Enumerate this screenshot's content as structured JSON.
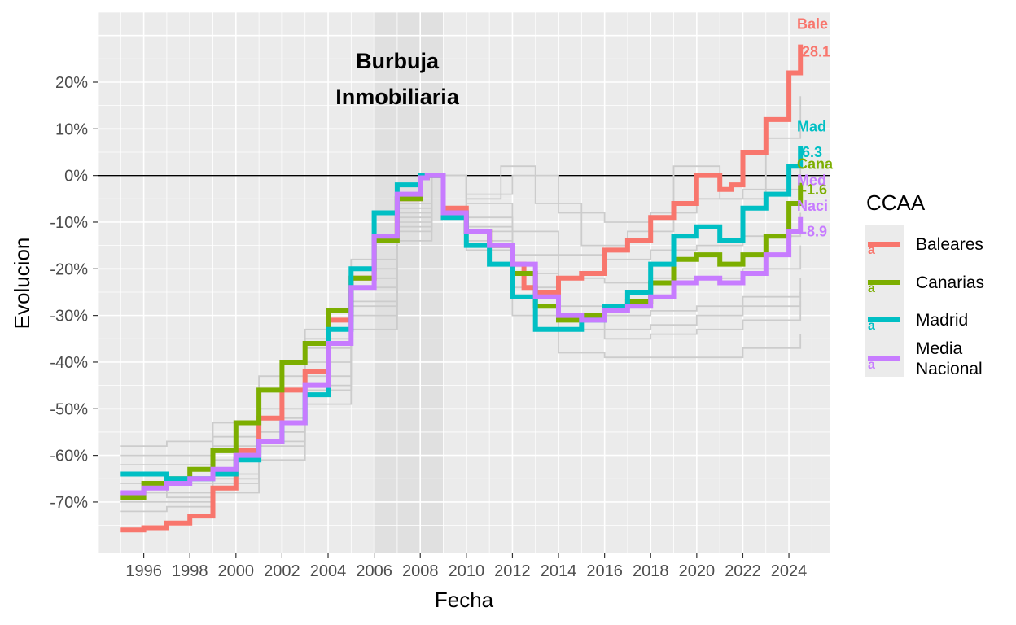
{
  "chart_data": {
    "type": "line",
    "title": "",
    "xlabel": "Fecha",
    "ylabel": "Evolucion",
    "xlim": [
      1994.0,
      2025.8
    ],
    "ylim": [
      -81,
      35
    ],
    "x_ticks": [
      1996,
      1998,
      2000,
      2002,
      2004,
      2006,
      2008,
      2010,
      2012,
      2014,
      2016,
      2018,
      2020,
      2022,
      2024
    ],
    "x_tick_labels": [
      "1996",
      "1998",
      "2000",
      "2002",
      "2004",
      "2006",
      "2008",
      "2010",
      "2012",
      "2014",
      "2016",
      "2018",
      "2020",
      "2022",
      "2024"
    ],
    "y_ticks": [
      -70,
      -60,
      -50,
      -40,
      -30,
      -20,
      -10,
      0,
      10,
      20
    ],
    "y_tick_labels": [
      "-70%",
      "-60%",
      "-50%",
      "-40%",
      "-30%",
      "-20%",
      "-10%",
      "0%",
      "10%",
      "20%"
    ],
    "grid": true,
    "reference_line_y": 0,
    "shaded_region": {
      "x": [
        2006.0,
        2009.0
      ],
      "label_line1": "Burbuja",
      "label_line2": "Inmobiliaria"
    },
    "legend": {
      "title": "CCAA",
      "placement": "right",
      "key_glyph": "a",
      "entries": [
        {
          "label_line1": "Baleares",
          "label_line2": "",
          "color": "#F8766D"
        },
        {
          "label_line1": "Canarias",
          "label_line2": "",
          "color": "#7CAE00"
        },
        {
          "label_line1": "Madrid",
          "label_line2": "",
          "color": "#00BFC4"
        },
        {
          "label_line1": "Media",
          "label_line2": "Nacional",
          "color": "#C77CFF"
        }
      ]
    },
    "end_labels": [
      {
        "name": "Bale",
        "value": "28.1",
        "color": "#F8766D",
        "name_y": 32.5,
        "value_y": 26.5
      },
      {
        "name": "Mad",
        "value": "6.3",
        "color": "#00BFC4",
        "name_y": 10.5,
        "value_y": 5.0
      },
      {
        "name": "Cana",
        "value": "-1.6",
        "color": "#7CAE00",
        "name_y": 2.5,
        "value_y": -3.0
      },
      {
        "name": "Med",
        "value": "",
        "color": "#C77CFF",
        "name_y": -1.0,
        "value_y": -1.0
      },
      {
        "name": "Naci",
        "value": "-8.9",
        "color": "#C77CFF",
        "name_y": -6.5,
        "value_y": -12.0
      }
    ],
    "series": [
      {
        "name": "Baleares",
        "color": "#F8766D",
        "highlight": true,
        "points": [
          [
            1995.0,
            -76
          ],
          [
            1996.0,
            -75.5
          ],
          [
            1997.0,
            -74.5
          ],
          [
            1998.0,
            -73
          ],
          [
            1999.0,
            -67
          ],
          [
            2000.0,
            -59
          ],
          [
            2001.0,
            -52
          ],
          [
            2002.0,
            -46
          ],
          [
            2003.0,
            -42
          ],
          [
            2004.0,
            -31
          ],
          [
            2005.0,
            -22
          ],
          [
            2006.0,
            -13
          ],
          [
            2007.0,
            -5
          ],
          [
            2008.0,
            -0.5
          ],
          [
            2008.3,
            0
          ],
          [
            2009.0,
            -7
          ],
          [
            2010.0,
            -12
          ],
          [
            2011.0,
            -15
          ],
          [
            2012.0,
            -19
          ],
          [
            2012.5,
            -24
          ],
          [
            2013.0,
            -25
          ],
          [
            2014.0,
            -22
          ],
          [
            2015.0,
            -21
          ],
          [
            2016.0,
            -16
          ],
          [
            2017.0,
            -14
          ],
          [
            2018.0,
            -9
          ],
          [
            2019.0,
            -6
          ],
          [
            2020.0,
            0
          ],
          [
            2021.0,
            -3
          ],
          [
            2021.5,
            -2
          ],
          [
            2022.0,
            5
          ],
          [
            2023.0,
            12
          ],
          [
            2024.0,
            22
          ],
          [
            2024.5,
            28.1
          ]
        ]
      },
      {
        "name": "Canarias",
        "color": "#7CAE00",
        "highlight": true,
        "points": [
          [
            1995.0,
            -69
          ],
          [
            1996.0,
            -66
          ],
          [
            1997.0,
            -65
          ],
          [
            1998.0,
            -63
          ],
          [
            1999.0,
            -59
          ],
          [
            2000.0,
            -53
          ],
          [
            2001.0,
            -46
          ],
          [
            2002.0,
            -40
          ],
          [
            2003.0,
            -36
          ],
          [
            2004.0,
            -29
          ],
          [
            2005.0,
            -22
          ],
          [
            2006.0,
            -14
          ],
          [
            2007.0,
            -5
          ],
          [
            2008.0,
            -0.5
          ],
          [
            2008.3,
            0
          ],
          [
            2009.0,
            -8
          ],
          [
            2010.0,
            -12
          ],
          [
            2011.0,
            -15
          ],
          [
            2012.0,
            -21
          ],
          [
            2013.0,
            -28
          ],
          [
            2014.0,
            -31
          ],
          [
            2015.0,
            -30
          ],
          [
            2016.0,
            -28
          ],
          [
            2017.0,
            -27
          ],
          [
            2018.0,
            -23
          ],
          [
            2019.0,
            -18
          ],
          [
            2020.0,
            -17
          ],
          [
            2021.0,
            -19
          ],
          [
            2022.0,
            -17
          ],
          [
            2023.0,
            -13
          ],
          [
            2024.0,
            -6
          ],
          [
            2024.5,
            -1.6
          ]
        ]
      },
      {
        "name": "Madrid",
        "color": "#00BFC4",
        "highlight": true,
        "points": [
          [
            1995.0,
            -64
          ],
          [
            1996.0,
            -64
          ],
          [
            1997.0,
            -65
          ],
          [
            1998.0,
            -65
          ],
          [
            1999.0,
            -64
          ],
          [
            2000.0,
            -61
          ],
          [
            2001.0,
            -57
          ],
          [
            2002.0,
            -53
          ],
          [
            2003.0,
            -47
          ],
          [
            2004.0,
            -33
          ],
          [
            2005.0,
            -20
          ],
          [
            2006.0,
            -8
          ],
          [
            2007.0,
            -2
          ],
          [
            2008.0,
            0
          ],
          [
            2008.3,
            0
          ],
          [
            2009.0,
            -9
          ],
          [
            2010.0,
            -15
          ],
          [
            2011.0,
            -19
          ],
          [
            2012.0,
            -26
          ],
          [
            2013.0,
            -33
          ],
          [
            2014.0,
            -33
          ],
          [
            2015.0,
            -31
          ],
          [
            2016.0,
            -28
          ],
          [
            2017.0,
            -25
          ],
          [
            2018.0,
            -19
          ],
          [
            2019.0,
            -13
          ],
          [
            2020.0,
            -11
          ],
          [
            2021.0,
            -14
          ],
          [
            2022.0,
            -7
          ],
          [
            2023.0,
            -4
          ],
          [
            2024.0,
            2
          ],
          [
            2024.5,
            6.3
          ]
        ]
      },
      {
        "name": "Media Nacional",
        "color": "#C77CFF",
        "highlight": true,
        "points": [
          [
            1995.0,
            -68
          ],
          [
            1996.0,
            -67
          ],
          [
            1997.0,
            -66
          ],
          [
            1998.0,
            -65
          ],
          [
            1999.0,
            -63
          ],
          [
            2000.0,
            -60
          ],
          [
            2001.0,
            -57
          ],
          [
            2002.0,
            -53
          ],
          [
            2003.0,
            -45
          ],
          [
            2004.0,
            -36
          ],
          [
            2005.0,
            -24
          ],
          [
            2006.0,
            -13
          ],
          [
            2007.0,
            -4
          ],
          [
            2008.0,
            -0.5
          ],
          [
            2008.3,
            0
          ],
          [
            2009.0,
            -8
          ],
          [
            2010.0,
            -12
          ],
          [
            2011.0,
            -15
          ],
          [
            2012.0,
            -19
          ],
          [
            2013.0,
            -26
          ],
          [
            2014.0,
            -30
          ],
          [
            2015.0,
            -31
          ],
          [
            2016.0,
            -29
          ],
          [
            2017.0,
            -28
          ],
          [
            2018.0,
            -26
          ],
          [
            2019.0,
            -23
          ],
          [
            2020.0,
            -22
          ],
          [
            2021.0,
            -23
          ],
          [
            2022.0,
            -21
          ],
          [
            2023.0,
            -17
          ],
          [
            2024.0,
            -12
          ],
          [
            2024.5,
            -8.9
          ]
        ]
      },
      {
        "name": "",
        "color": "#cccccc",
        "highlight": false,
        "points": [
          [
            1995.0,
            -58
          ],
          [
            1997.0,
            -57
          ],
          [
            1999.0,
            -53
          ],
          [
            2001.0,
            -43
          ],
          [
            2003.0,
            -33
          ],
          [
            2005.0,
            -18
          ],
          [
            2007.0,
            -6
          ],
          [
            2008.5,
            0
          ],
          [
            2010.0,
            -5
          ],
          [
            2011.5,
            2
          ],
          [
            2013.0,
            -6
          ],
          [
            2015.0,
            -15
          ],
          [
            2017.0,
            -12
          ],
          [
            2019.0,
            2
          ],
          [
            2021.0,
            -5
          ],
          [
            2023.0,
            8
          ],
          [
            2024.5,
            17
          ]
        ]
      },
      {
        "name": "",
        "color": "#cccccc",
        "highlight": false,
        "points": [
          [
            1995.0,
            -60
          ],
          [
            1997.0,
            -60
          ],
          [
            1999.0,
            -56
          ],
          [
            2001.0,
            -46
          ],
          [
            2003.0,
            -35
          ],
          [
            2005.0,
            -20
          ],
          [
            2007.0,
            -7
          ],
          [
            2008.5,
            0
          ],
          [
            2010.0,
            -4
          ],
          [
            2012.0,
            0
          ],
          [
            2014.0,
            -8
          ],
          [
            2016.0,
            -10
          ],
          [
            2018.0,
            -8
          ],
          [
            2020.0,
            -5
          ],
          [
            2022.0,
            -3
          ],
          [
            2024.5,
            5
          ]
        ]
      },
      {
        "name": "",
        "color": "#cccccc",
        "highlight": false,
        "points": [
          [
            1995.0,
            -62
          ],
          [
            1997.0,
            -62
          ],
          [
            1999.0,
            -58
          ],
          [
            2001.0,
            -50
          ],
          [
            2003.0,
            -37
          ],
          [
            2005.0,
            -22
          ],
          [
            2007.0,
            -8
          ],
          [
            2008.5,
            0
          ],
          [
            2010.0,
            -6
          ],
          [
            2012.0,
            -12
          ],
          [
            2014.0,
            -17
          ],
          [
            2016.0,
            -18
          ],
          [
            2018.0,
            -16
          ],
          [
            2020.0,
            -15
          ],
          [
            2022.0,
            -13
          ],
          [
            2024.5,
            -8
          ]
        ]
      },
      {
        "name": "",
        "color": "#cccccc",
        "highlight": false,
        "points": [
          [
            1995.0,
            -64
          ],
          [
            1997.0,
            -66
          ],
          [
            1999.0,
            -61
          ],
          [
            2001.0,
            -52
          ],
          [
            2003.0,
            -40
          ],
          [
            2005.0,
            -24
          ],
          [
            2007.0,
            -9
          ],
          [
            2008.5,
            0
          ],
          [
            2010.0,
            -9
          ],
          [
            2012.0,
            -17
          ],
          [
            2014.0,
            -22
          ],
          [
            2016.0,
            -23
          ],
          [
            2018.0,
            -22
          ],
          [
            2020.0,
            -22
          ],
          [
            2022.0,
            -20
          ],
          [
            2024.5,
            -15
          ]
        ]
      },
      {
        "name": "",
        "color": "#cccccc",
        "highlight": false,
        "points": [
          [
            1995.0,
            -66
          ],
          [
            1997.0,
            -68
          ],
          [
            1999.0,
            -64
          ],
          [
            2001.0,
            -55
          ],
          [
            2003.0,
            -43
          ],
          [
            2005.0,
            -27
          ],
          [
            2007.0,
            -10
          ],
          [
            2008.5,
            0
          ],
          [
            2010.0,
            -11
          ],
          [
            2012.0,
            -21
          ],
          [
            2014.0,
            -28
          ],
          [
            2016.0,
            -30
          ],
          [
            2018.0,
            -29
          ],
          [
            2020.0,
            -28
          ],
          [
            2022.0,
            -26
          ],
          [
            2024.5,
            -22
          ]
        ]
      },
      {
        "name": "",
        "color": "#cccccc",
        "highlight": false,
        "points": [
          [
            1995.0,
            -70
          ],
          [
            1997.0,
            -70
          ],
          [
            1999.0,
            -66
          ],
          [
            2001.0,
            -58
          ],
          [
            2003.0,
            -46
          ],
          [
            2005.0,
            -30
          ],
          [
            2007.0,
            -12
          ],
          [
            2008.5,
            0
          ],
          [
            2010.0,
            -14
          ],
          [
            2012.0,
            -26
          ],
          [
            2014.0,
            -33
          ],
          [
            2016.0,
            -35
          ],
          [
            2018.0,
            -34
          ],
          [
            2020.0,
            -33
          ],
          [
            2022.0,
            -31
          ],
          [
            2024.5,
            -27
          ]
        ]
      },
      {
        "name": "",
        "color": "#cccccc",
        "highlight": false,
        "points": [
          [
            1995.0,
            -72
          ],
          [
            1997.0,
            -71
          ],
          [
            1999.0,
            -68
          ],
          [
            2001.0,
            -61
          ],
          [
            2003.0,
            -49
          ],
          [
            2005.0,
            -33
          ],
          [
            2007.0,
            -14
          ],
          [
            2008.5,
            0
          ],
          [
            2010.0,
            -16
          ],
          [
            2012.0,
            -30
          ],
          [
            2014.0,
            -38
          ],
          [
            2016.0,
            -39
          ],
          [
            2018.0,
            -39
          ],
          [
            2020.0,
            -39
          ],
          [
            2022.0,
            -37
          ],
          [
            2024.5,
            -34
          ]
        ]
      },
      {
        "name": "",
        "color": "#cccccc",
        "highlight": false,
        "points": [
          [
            1995.0,
            -68
          ],
          [
            1997.0,
            -69
          ],
          [
            1999.0,
            -65
          ],
          [
            2001.0,
            -57
          ],
          [
            2003.0,
            -45
          ],
          [
            2005.0,
            -28
          ],
          [
            2007.0,
            -11
          ],
          [
            2008.5,
            0
          ],
          [
            2010.0,
            -12
          ],
          [
            2012.0,
            -24
          ],
          [
            2014.0,
            -31
          ],
          [
            2016.0,
            -33
          ],
          [
            2018.0,
            -32
          ],
          [
            2020.0,
            -30
          ],
          [
            2022.0,
            -28
          ],
          [
            2024.5,
            -25
          ]
        ]
      }
    ]
  }
}
